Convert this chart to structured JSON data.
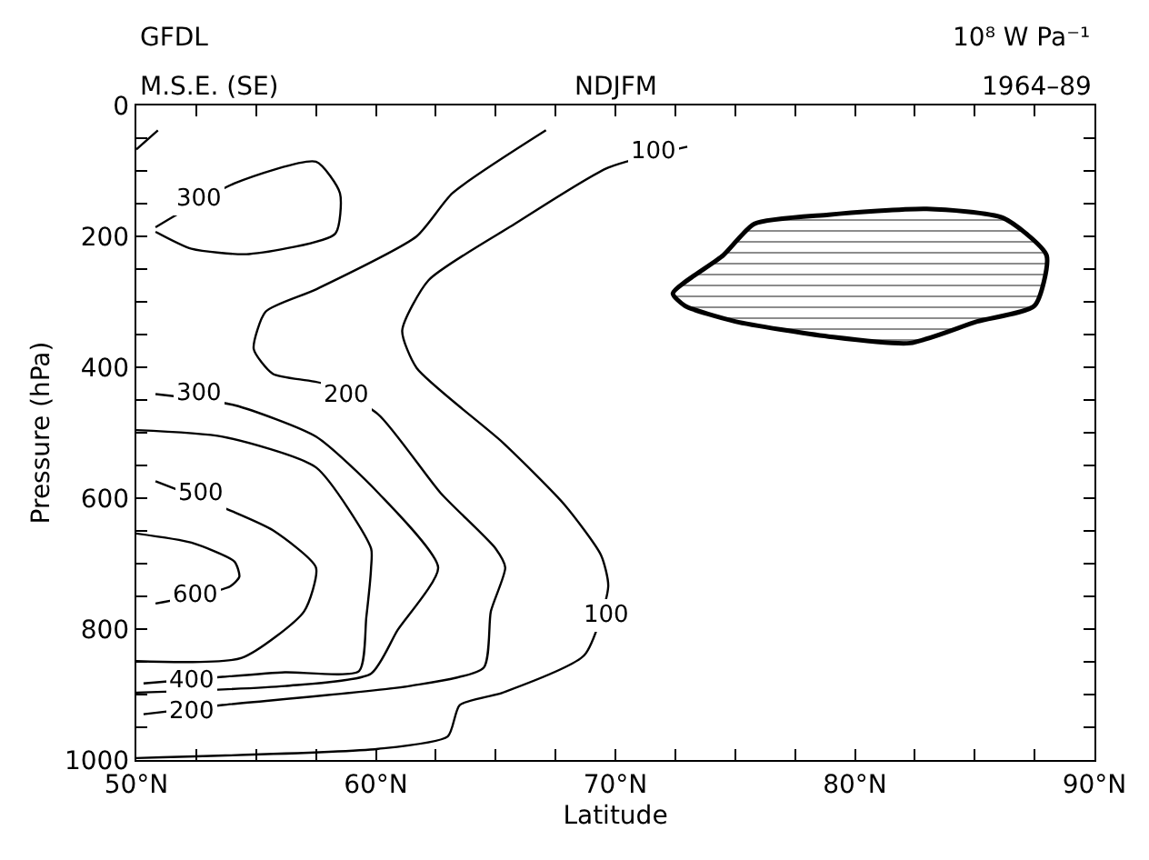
{
  "chart_data": {
    "type": "line",
    "title": "GFDL",
    "subtitle": "M.S.E. (SE)",
    "xlabel": "Latitude",
    "ylabel": "Pressure (hPa)",
    "xlim": [
      50,
      90
    ],
    "ylim": [
      1000,
      0
    ],
    "xticks": [
      {
        "value": 50,
        "label": "50°N"
      },
      {
        "value": 52.5,
        "label": null
      },
      {
        "value": 55,
        "label": null
      },
      {
        "value": 57.5,
        "label": null
      },
      {
        "value": 60,
        "label": "60°N"
      },
      {
        "value": 62.5,
        "label": null
      },
      {
        "value": 65,
        "label": null
      },
      {
        "value": 67.5,
        "label": null
      },
      {
        "value": 70,
        "label": "70°N"
      },
      {
        "value": 72.5,
        "label": null
      },
      {
        "value": 75,
        "label": null
      },
      {
        "value": 77.5,
        "label": null
      },
      {
        "value": 80,
        "label": "80°N"
      },
      {
        "value": 82.5,
        "label": null
      },
      {
        "value": 85,
        "label": null
      },
      {
        "value": 87.5,
        "label": null
      },
      {
        "value": 90,
        "label": "90°N"
      }
    ],
    "yticks": [
      0,
      {
        "value": 50,
        "label": null
      },
      {
        "value": 100,
        "label": null
      },
      {
        "value": 150,
        "label": null
      },
      200,
      {
        "value": 250,
        "label": null
      },
      {
        "value": 300,
        "label": null
      },
      {
        "value": 350,
        "label": null
      },
      400,
      {
        "value": 450,
        "label": null
      },
      {
        "value": 500,
        "label": null
      },
      {
        "value": 550,
        "label": null
      },
      600,
      {
        "value": 650,
        "label": null
      },
      {
        "value": 700,
        "label": null
      },
      {
        "value": 750,
        "label": null
      },
      800,
      {
        "value": 850,
        "label": null
      },
      {
        "value": 900,
        "label": null
      },
      {
        "value": 950,
        "label": null
      },
      1000
    ],
    "marker": "none",
    "line_style": "solid",
    "series": [
      {
        "color": "#000000",
        "x": [
          50.8,
          54.1,
          57.5,
          58.5,
          58.3,
          54.7,
          52.3,
          50.8
        ],
        "values": [
          186,
          119,
          86,
          134,
          196,
          227,
          219,
          193
        ]
      },
      {
        "color": "#000000",
        "x": [
          50,
          50.9
        ],
        "values": [
          67,
          38
        ]
      },
      {
        "color": "#000000",
        "x": [
          73.0,
          69.7,
          65.8,
          62.2,
          61.1,
          61.7,
          65.3,
          67.9,
          69.4,
          69.7,
          68.7,
          65.3,
          63.5,
          63.0,
          60.1,
          50
        ],
        "values": [
          63,
          95,
          181,
          267,
          344,
          401,
          515,
          611,
          687,
          735,
          840,
          897,
          916,
          964,
          983,
          997
        ]
      },
      {
        "color": "#000000",
        "x": [
          67.1,
          63.2,
          61.7,
          57.5,
          55.4,
          54.9,
          55.7,
          57.8,
          60.1,
          62.7,
          65.0,
          65.4,
          64.8,
          64.5,
          61.4,
          53.6,
          50.3
        ],
        "values": [
          38,
          134,
          200,
          281,
          315,
          372,
          410,
          425,
          472,
          592,
          677,
          706,
          773,
          859,
          887,
          916,
          930
        ]
      },
      {
        "color": "#000000",
        "x": [
          50.8,
          54.1,
          57.5,
          60.1,
          62.6,
          60.9,
          59.8,
          56.2,
          50
        ],
        "values": [
          441,
          458,
          506,
          592,
          706,
          802,
          868,
          887,
          897
        ]
      },
      {
        "color": "#000000",
        "x": [
          50,
          53.6,
          57.5,
          59.8,
          59.8,
          59.6,
          59.3,
          56.2,
          53.6,
          50.3
        ],
        "values": [
          496,
          506,
          553,
          677,
          706,
          782,
          864,
          866,
          873,
          883
        ]
      },
      {
        "color": "#000000",
        "x": [
          50.8,
          54.0,
          55.7,
          57.5,
          57.0,
          54.4,
          50
        ],
        "values": [
          574,
          620,
          649,
          706,
          773,
          844,
          849
        ]
      },
      {
        "color": "#000000",
        "x": [
          50,
          52.3,
          54.1,
          54.3,
          53.9,
          50.8
        ],
        "values": [
          654,
          668,
          697,
          720,
          735,
          761
        ]
      },
      {
        "type": "area",
        "color": "#000000",
        "x": [
          72.4,
          74.5,
          75.8,
          78.9,
          83.0,
          86.2,
          88.0,
          87.5,
          85.1,
          82.3,
          78.9,
          75.0,
          72.9,
          72.4
        ],
        "values": [
          287,
          229,
          181,
          167,
          158,
          172,
          229,
          306,
          330,
          363,
          353,
          330,
          306,
          287
        ]
      }
    ],
    "annotations": [
      "NDJFM",
      "10⁸ W Pa⁻¹",
      "1964–89",
      {
        "text": "300",
        "x": 52.6,
        "y": 143
      },
      {
        "text": "100",
        "x": 71.6,
        "y": 72
      },
      {
        "text": "200",
        "x": 58.8,
        "y": 444
      },
      {
        "text": "300",
        "x": 52.6,
        "y": 440
      },
      {
        "text": "500",
        "x": 52.7,
        "y": 592
      },
      {
        "text": "600",
        "x": 52.5,
        "y": 749
      },
      {
        "text": "400",
        "x": 52.3,
        "y": 878
      },
      {
        "text": "200",
        "x": 52.3,
        "y": 927
      },
      {
        "text": "100",
        "x": 69.6,
        "y": 780
      }
    ]
  }
}
